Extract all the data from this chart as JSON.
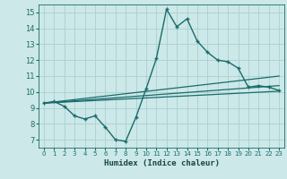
{
  "xlabel": "Humidex (Indice chaleur)",
  "bg_color": "#cce8e8",
  "grid_color": "#aacfcf",
  "line_color": "#1a6b6b",
  "xlim": [
    -0.5,
    23.5
  ],
  "ylim": [
    6.5,
    15.5
  ],
  "xticks": [
    0,
    1,
    2,
    3,
    4,
    5,
    6,
    7,
    8,
    9,
    10,
    11,
    12,
    13,
    14,
    15,
    16,
    17,
    18,
    19,
    20,
    21,
    22,
    23
  ],
  "yticks": [
    7,
    8,
    9,
    10,
    11,
    12,
    13,
    14,
    15
  ],
  "line1_x": [
    0,
    1,
    2,
    3,
    4,
    5,
    6,
    7,
    8,
    9,
    10,
    11,
    12,
    13,
    14,
    15,
    16,
    17,
    18,
    19,
    20,
    21,
    22,
    23
  ],
  "line1_y": [
    9.3,
    9.4,
    9.1,
    8.5,
    8.3,
    8.5,
    7.8,
    7.0,
    6.9,
    8.4,
    10.2,
    12.1,
    15.2,
    14.1,
    14.6,
    13.2,
    12.5,
    12.0,
    11.9,
    11.5,
    10.3,
    10.4,
    10.3,
    10.1
  ],
  "line2_x": [
    0,
    23
  ],
  "line2_y": [
    9.3,
    10.4
  ],
  "line3_x": [
    0,
    23
  ],
  "line3_y": [
    9.3,
    11.0
  ],
  "line4_x": [
    0,
    23
  ],
  "line4_y": [
    9.3,
    10.05
  ]
}
